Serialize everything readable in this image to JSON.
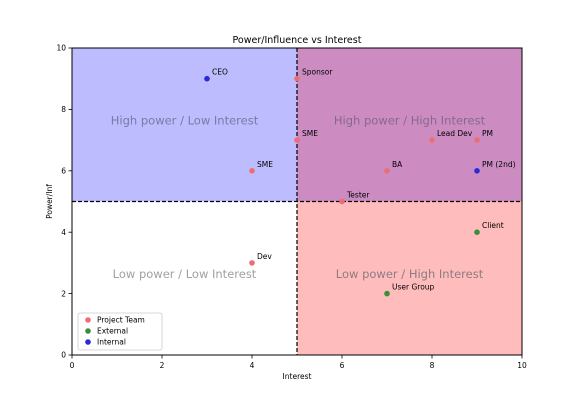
{
  "chart_data": {
    "type": "scatter",
    "title": "Power/Influence vs Interest",
    "xlabel": "Interest",
    "ylabel": "Power/Inf",
    "xlim": [
      0,
      10
    ],
    "ylim": [
      0,
      10
    ],
    "x_ticks": [
      0,
      2,
      4,
      6,
      8,
      10
    ],
    "y_ticks": [
      0,
      2,
      4,
      6,
      8,
      10
    ],
    "grid": false,
    "divider_x": 5,
    "divider_y": 5,
    "quadrants": [
      {
        "label": "High power / Low Interest",
        "x": [
          0,
          5
        ],
        "y": [
          5,
          10
        ],
        "color": "#bcbcff",
        "text_color": "#7a7aa6"
      },
      {
        "label": "High power / High Interest",
        "x": [
          5,
          10
        ],
        "y": [
          5,
          10
        ],
        "color": "#cc8cc2",
        "text_color": "#86698a"
      },
      {
        "label": "Low power / Low Interest",
        "x": [
          0,
          5
        ],
        "y": [
          0,
          5
        ],
        "color": "#ffffff",
        "text_color": "#a0a0a0"
      },
      {
        "label": "Low power / High Interest",
        "x": [
          5,
          10
        ],
        "y": [
          0,
          5
        ],
        "color": "#ffbcbc",
        "text_color": "#8c7d82"
      }
    ],
    "series": [
      {
        "name": "Project Team",
        "color": "#ee6d75",
        "points": [
          {
            "x": 5,
            "y": 9,
            "label": "Sponsor"
          },
          {
            "x": 5,
            "y": 7,
            "label": "SME"
          },
          {
            "x": 8,
            "y": 7,
            "label": "Lead Dev"
          },
          {
            "x": 9,
            "y": 7,
            "label": "PM"
          },
          {
            "x": 7,
            "y": 6,
            "label": "BA"
          },
          {
            "x": 4,
            "y": 6,
            "label": "SME"
          },
          {
            "x": 6,
            "y": 5,
            "label": "Tester"
          },
          {
            "x": 4,
            "y": 3,
            "label": "Dev"
          }
        ]
      },
      {
        "name": "External",
        "color": "#3a8f3a",
        "points": [
          {
            "x": 9,
            "y": 4,
            "label": "Client"
          },
          {
            "x": 7,
            "y": 2,
            "label": "User Group"
          }
        ]
      },
      {
        "name": "Internal",
        "color": "#2a2ad8",
        "points": [
          {
            "x": 3,
            "y": 9,
            "label": "CEO"
          },
          {
            "x": 9,
            "y": 6,
            "label": "PM (2nd)"
          }
        ]
      }
    ],
    "legend_position": "bottom-left"
  }
}
